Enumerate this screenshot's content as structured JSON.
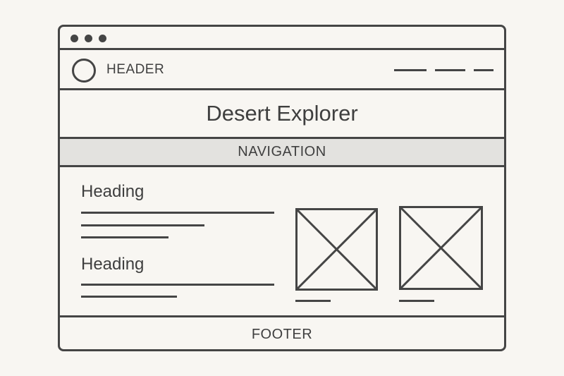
{
  "header": {
    "label": "HEADER",
    "logo_icon": "circle-logo-icon",
    "menu_icon": "dash-menu-icon"
  },
  "title": {
    "text": "Desert Explorer"
  },
  "navigation": {
    "label": "NAVIGATION"
  },
  "content": {
    "headings": [
      "Heading",
      "Heading"
    ],
    "image_placeholder_icon": "image-placeholder-icon"
  },
  "footer": {
    "label": "FOOTER"
  },
  "colors": {
    "stroke": "#454545",
    "background": "#f8f6f2",
    "navigation_fill": "#e3e2df",
    "text": "#3f3f3f"
  }
}
